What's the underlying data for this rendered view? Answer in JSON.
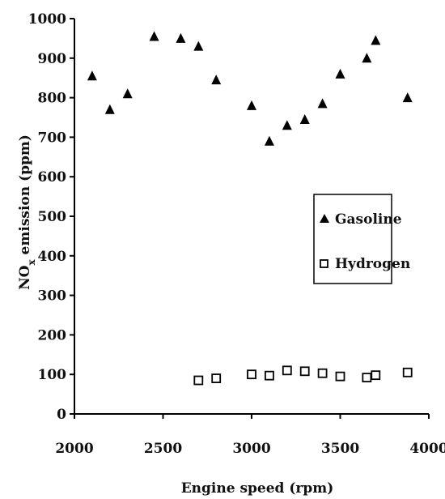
{
  "chart_data": {
    "type": "scatter",
    "xlabel": "Engine speed (rpm)",
    "ylabel": "NO",
    "ylabel_subscript": "x",
    "ylabel_suffix": " emission (ppm)",
    "xlim": [
      2000,
      4000
    ],
    "ylim": [
      0,
      1000
    ],
    "x_ticks": [
      2000,
      2500,
      3000,
      3500,
      4000
    ],
    "y_ticks": [
      0,
      100,
      200,
      300,
      400,
      500,
      600,
      700,
      800,
      900,
      1000
    ],
    "grid": false,
    "legend_position": "right-middle",
    "series": [
      {
        "name": "Gasoline",
        "marker": "triangle",
        "color": "#000000",
        "points": [
          [
            2100,
            855
          ],
          [
            2200,
            770
          ],
          [
            2300,
            810
          ],
          [
            2450,
            955
          ],
          [
            2600,
            950
          ],
          [
            2700,
            930
          ],
          [
            2800,
            845
          ],
          [
            3000,
            780
          ],
          [
            3100,
            690
          ],
          [
            3200,
            730
          ],
          [
            3300,
            745
          ],
          [
            3400,
            785
          ],
          [
            3500,
            860
          ],
          [
            3650,
            900
          ],
          [
            3700,
            945
          ],
          [
            3880,
            800
          ]
        ]
      },
      {
        "name": "Hydrogen",
        "marker": "square",
        "color": "#000000",
        "points": [
          [
            2700,
            85
          ],
          [
            2800,
            90
          ],
          [
            3000,
            100
          ],
          [
            3100,
            97
          ],
          [
            3200,
            110
          ],
          [
            3300,
            108
          ],
          [
            3400,
            103
          ],
          [
            3500,
            95
          ],
          [
            3650,
            92
          ],
          [
            3700,
            98
          ],
          [
            3880,
            105
          ]
        ]
      }
    ]
  }
}
